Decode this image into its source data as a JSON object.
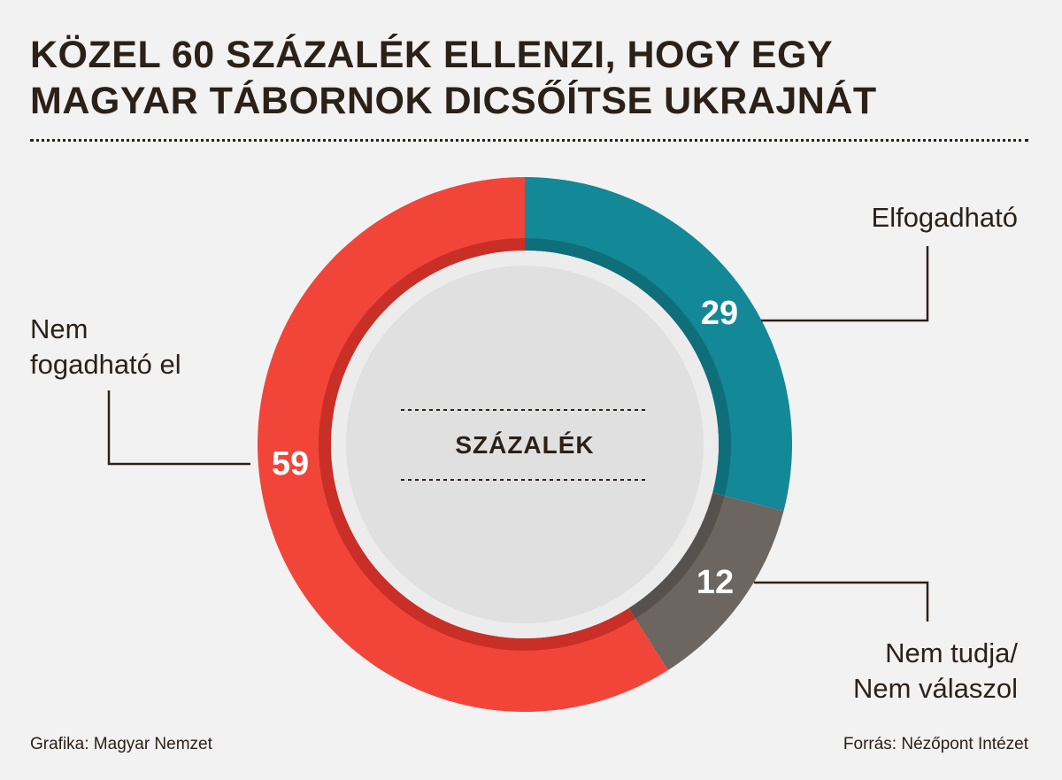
{
  "header": {
    "title_line1": "KÖZEL 60 SZÁZALÉK ELLENZI, HOGY EGY",
    "title_line2": "MAGYAR TÁBORNOK DICSŐÍTSE UKRAJNÁT"
  },
  "chart_data": {
    "type": "pie",
    "variant": "donut",
    "title": "KÖZEL 60 SZÁZALÉK ELLENZI, HOGY EGY MAGYAR TÁBORNOK DICSŐÍTSE UKRAJNÁT",
    "center_label": "SZÁZALÉK",
    "unit": "%",
    "slices": [
      {
        "key": "yes",
        "label_line1": "Elfogadható",
        "label_line2": "",
        "value": 29,
        "value_label": "29",
        "color": "#138896",
        "shade": "#0e6f7a"
      },
      {
        "key": "dk",
        "label_line1": "Nem tudja/",
        "label_line2": "Nem válaszol",
        "value": 12,
        "value_label": "12",
        "color": "#6c6560",
        "shade": "#57514d"
      },
      {
        "key": "no",
        "label_line1": "Nem",
        "label_line2": "fogadható el",
        "value": 59,
        "value_label": "59",
        "color": "#f2453a",
        "shade": "#c92f26"
      }
    ]
  },
  "footer": {
    "credit": "Grafika: Magyar Nemzet",
    "source": "Forrás: Nézőpont Intézet"
  }
}
